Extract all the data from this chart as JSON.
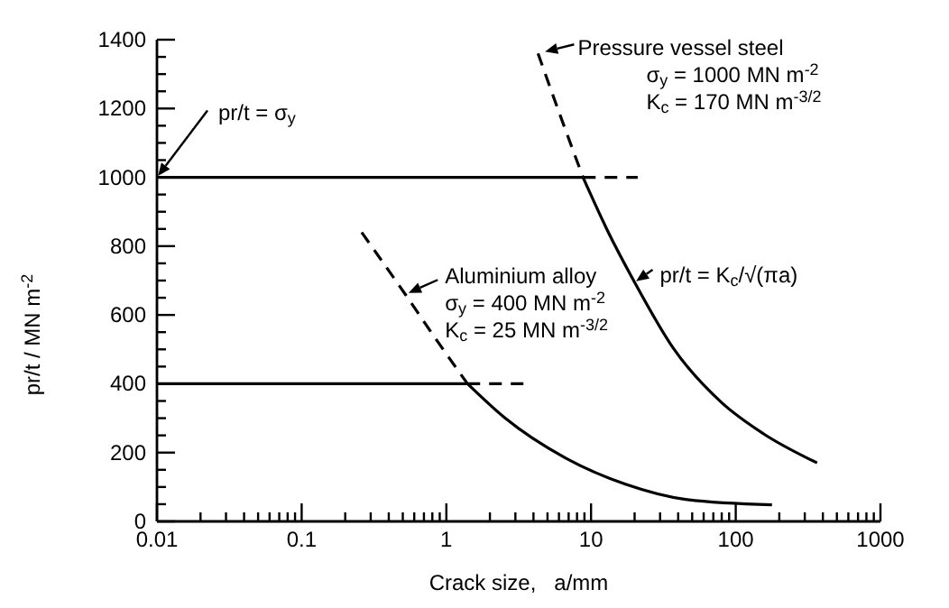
{
  "chart_data": {
    "type": "line",
    "log": "x",
    "xlabel": "Crack size,   a/mm",
    "ylabel": "pr/t / MN m$^{-2}$",
    "xlim": [
      0.01,
      1000
    ],
    "ylim": [
      0,
      1400
    ],
    "xticks": [
      0.01,
      {
        "value": 0.02,
        "label": null
      },
      {
        "value": 0.03,
        "label": null
      },
      {
        "value": 0.04,
        "label": null
      },
      {
        "value": 0.05,
        "label": null
      },
      {
        "value": 0.06,
        "label": null
      },
      {
        "value": 0.07,
        "label": null
      },
      {
        "value": 0.08,
        "label": null
      },
      {
        "value": 0.09,
        "label": null
      },
      0.1,
      {
        "value": 0.2,
        "label": null
      },
      {
        "value": 0.3,
        "label": null
      },
      {
        "value": 0.4,
        "label": null
      },
      {
        "value": 0.5,
        "label": null
      },
      {
        "value": 0.6,
        "label": null
      },
      {
        "value": 0.7,
        "label": null
      },
      {
        "value": 0.8,
        "label": null
      },
      {
        "value": 0.9,
        "label": null
      },
      1,
      {
        "value": 2,
        "label": null
      },
      {
        "value": 3,
        "label": null
      },
      {
        "value": 4,
        "label": null
      },
      {
        "value": 5,
        "label": null
      },
      {
        "value": 6,
        "label": null
      },
      {
        "value": 7,
        "label": null
      },
      {
        "value": 8,
        "label": null
      },
      {
        "value": 9,
        "label": null
      },
      10,
      {
        "value": 20,
        "label": null
      },
      {
        "value": 30,
        "label": null
      },
      {
        "value": 40,
        "label": null
      },
      {
        "value": 50,
        "label": null
      },
      {
        "value": 60,
        "label": null
      },
      {
        "value": 70,
        "label": null
      },
      {
        "value": 80,
        "label": null
      },
      {
        "value": 90,
        "label": null
      },
      100,
      {
        "value": 200,
        "label": null
      },
      {
        "value": 300,
        "label": null
      },
      {
        "value": 400,
        "label": null
      },
      {
        "value": 500,
        "label": null
      },
      {
        "value": 600,
        "label": null
      },
      {
        "value": 700,
        "label": null
      },
      {
        "value": 800,
        "label": null
      },
      {
        "value": 900,
        "label": null
      },
      1000
    ],
    "yticks": [
      0,
      {
        "value": 50,
        "label": null
      },
      {
        "value": 100,
        "label": null
      },
      {
        "value": 150,
        "label": null
      },
      200,
      {
        "value": 250,
        "label": null
      },
      {
        "value": 300,
        "label": null
      },
      {
        "value": 350,
        "label": null
      },
      400,
      {
        "value": 450,
        "label": null
      },
      {
        "value": 500,
        "label": null
      },
      {
        "value": 550,
        "label": null
      },
      600,
      {
        "value": 650,
        "label": null
      },
      {
        "value": 700,
        "label": null
      },
      {
        "value": 750,
        "label": null
      },
      800,
      {
        "value": 850,
        "label": null
      },
      {
        "value": 900,
        "label": null
      },
      {
        "value": 950,
        "label": null
      },
      1000,
      {
        "value": 1050,
        "label": null
      },
      {
        "value": 1100,
        "label": null
      },
      {
        "value": 1150,
        "label": null
      },
      1200,
      {
        "value": 1250,
        "label": null
      },
      {
        "value": 1300,
        "label": null
      },
      {
        "value": 1350,
        "label": null
      },
      1400
    ],
    "series": [
      {
        "color": "#000000",
        "line_style": "solid",
        "x": [
          0.01,
          8.8
        ],
        "values": [
          1000,
          1000
        ]
      },
      {
        "color": "#000000",
        "line_style": "dashed",
        "x": [
          8.8,
          21
        ],
        "values": [
          1000,
          1000
        ]
      },
      {
        "color": "#000000",
        "line_style": "solid",
        "x": [
          0.01,
          1.4
        ],
        "values": [
          400,
          400
        ]
      },
      {
        "color": "#000000",
        "line_style": "dashed",
        "x": [
          1.4,
          3.6
        ],
        "values": [
          400,
          400
        ]
      },
      {
        "color": "#000000",
        "line_style": "dashed",
        "x": [
          4.3,
          6,
          8.8
        ],
        "values": [
          1360,
          1190,
          1000
        ]
      },
      {
        "color": "#000000",
        "line_style": "solid",
        "x": [
          8.8,
          13,
          20,
          36.8,
          80,
          155,
          365
        ],
        "values": [
          1000,
          845,
          695,
          505,
          345,
          255,
          170
        ]
      },
      {
        "color": "#000000",
        "line_style": "dashed",
        "x": [
          0.26,
          0.52,
          0.8,
          1.4
        ],
        "values": [
          840,
          660,
          545,
          400
        ]
      },
      {
        "color": "#000000",
        "line_style": "solid",
        "x": [
          1.4,
          2.55,
          6.6,
          17.3,
          45,
          178
        ],
        "values": [
          400,
          300,
          185,
          108,
          64,
          48
        ]
      }
    ],
    "annotations": [
      {
        "text": "pr/t = σ$_{y}$",
        "x": 0.01,
        "y": 1000
      },
      {
        "text": "Pressure vessel steel",
        "x": 4.3,
        "y": 1360
      },
      "σ$_{y}$ = 1000 MN m$^{-2}$",
      "K$_{c}$ = 170 MN m$^{-3/2}$",
      {
        "text": "Aluminium alloy",
        "x": 0.52,
        "y": 660
      },
      "σ$_{y}$ = 400 MN m$^{-2}$",
      "K$_{c}$ = 25 MN m$^{-3/2}$",
      {
        "text": "pr/t = K$_{c}$/√(πa)",
        "x": 20,
        "y": 695
      }
    ]
  }
}
